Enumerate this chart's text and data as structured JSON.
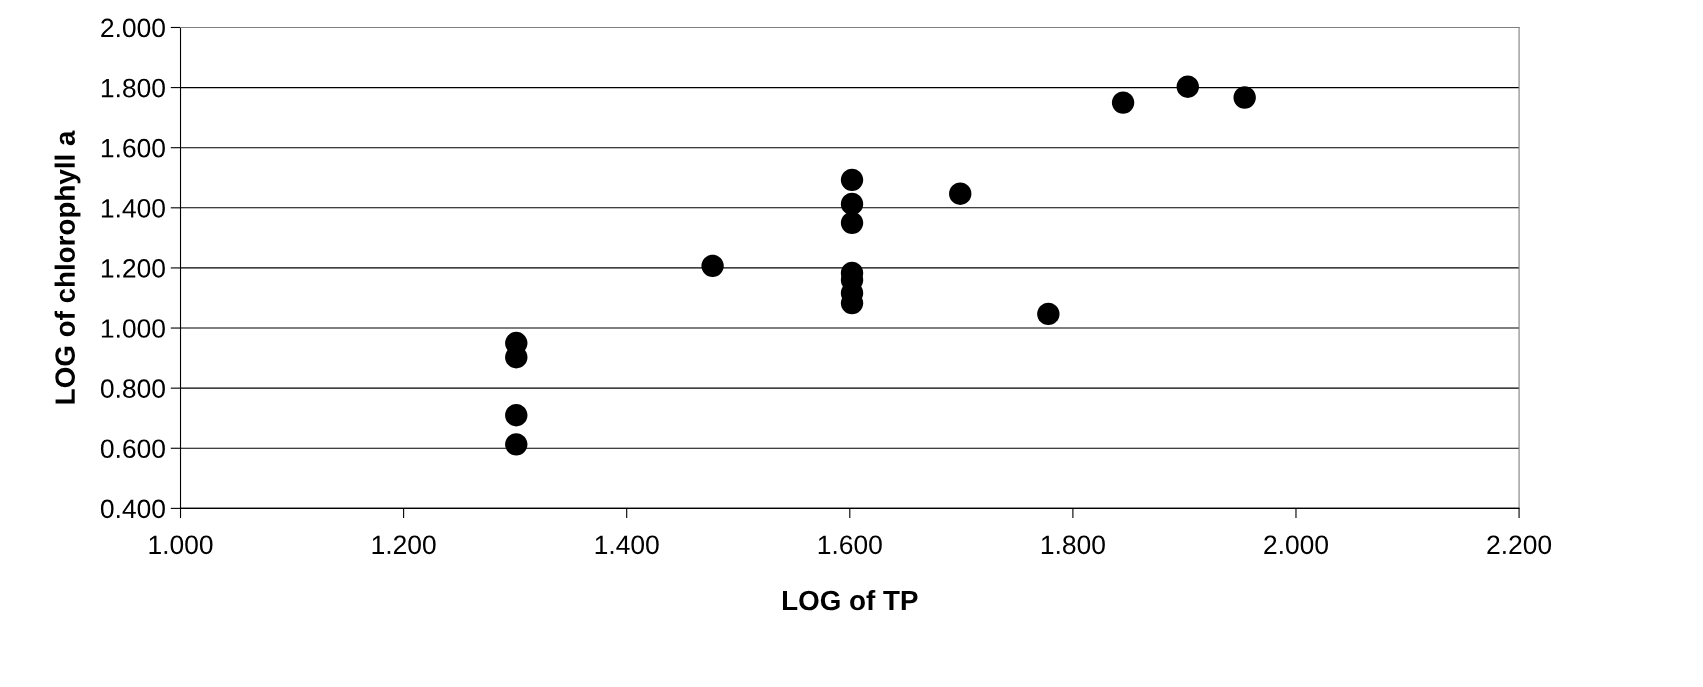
{
  "chart_data": {
    "type": "scatter",
    "xlabel": "LOG of TP",
    "ylabel": "LOG of chlorophyll a",
    "x": [
      1.301,
      1.301,
      1.301,
      1.301,
      1.477,
      1.602,
      1.602,
      1.602,
      1.602,
      1.602,
      1.602,
      1.602,
      1.699,
      1.778,
      1.845,
      1.903,
      1.954
    ],
    "series": [
      {
        "color": "#000000",
        "values": [
          0.95,
          0.903,
          0.71,
          0.613,
          1.207,
          1.493,
          1.413,
          1.35,
          1.183,
          1.16,
          1.117,
          1.083,
          1.447,
          1.047,
          1.75,
          1.803,
          1.767
        ]
      }
    ],
    "xlim": [
      1.0,
      2.2
    ],
    "xticks": [
      {
        "value": 1.0,
        "label": "1.000"
      },
      {
        "value": 1.2,
        "label": "1.200"
      },
      {
        "value": 1.4,
        "label": "1.400"
      },
      {
        "value": 1.6,
        "label": "1.600"
      },
      {
        "value": 1.8,
        "label": "1.800"
      },
      {
        "value": 2.0,
        "label": "2.000"
      },
      {
        "value": 2.2,
        "label": "2.200"
      }
    ],
    "ylim": [
      0.4,
      2.0
    ],
    "yticks": [
      {
        "value": 0.4,
        "label": "0.400"
      },
      {
        "value": 0.6,
        "label": "0.600"
      },
      {
        "value": 0.8,
        "label": "0.800"
      },
      {
        "value": 1.0,
        "label": "1.000"
      },
      {
        "value": 1.2,
        "label": "1.200"
      },
      {
        "value": 1.4,
        "label": "1.400"
      },
      {
        "value": 1.6,
        "label": "1.600"
      },
      {
        "value": 1.8,
        "label": "1.800"
      },
      {
        "value": 2.0,
        "label": "2.000"
      }
    ],
    "grid": "y",
    "marker": "circle"
  }
}
